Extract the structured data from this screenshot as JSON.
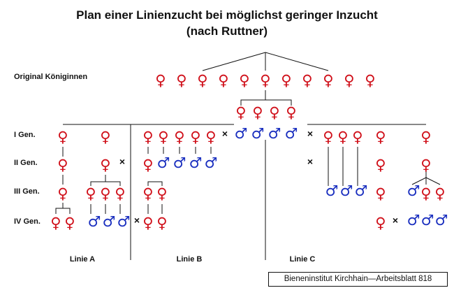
{
  "title_line1": "Plan einer Linienzucht bei möglichst geringer Inzucht",
  "title_line2": "(nach Ruttner)",
  "rows": {
    "original": "Original Königinnen",
    "gen1": "I Gen.",
    "gen2": "II Gen.",
    "gen3": "III Gen.",
    "gen4": "IV Gen."
  },
  "lines": {
    "a": "Linie A",
    "b": "Linie B",
    "c": "Linie C"
  },
  "symbols": {
    "female": "♀",
    "male": "♂",
    "cross": "×"
  },
  "source": "Bieneninstitut Kirchhain—Arbeitsblatt 818",
  "colors": {
    "female": "#d0101a",
    "male": "#1a2fbf",
    "lines": "#111111"
  }
}
